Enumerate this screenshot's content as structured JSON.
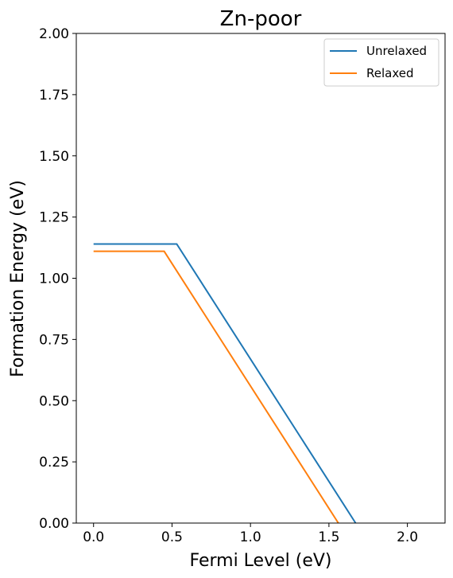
{
  "chart_data": {
    "type": "line",
    "title": "Zn-poor",
    "xlabel": "Fermi Level (eV)",
    "ylabel": "Formation Energy (eV)",
    "xlim": [
      -0.11,
      2.24
    ],
    "ylim": [
      0.0,
      2.0
    ],
    "xticks": [
      "0.0",
      "0.5",
      "1.0",
      "1.5",
      "2.0"
    ],
    "yticks": [
      "0.00",
      "0.25",
      "0.50",
      "0.75",
      "1.00",
      "1.25",
      "1.50",
      "1.75",
      "2.00"
    ],
    "grid": false,
    "legend_position": "top-right",
    "series": [
      {
        "name": "Unrelaxed",
        "color": "#1f77b4",
        "x": [
          0.0,
          0.53,
          1.67
        ],
        "y": [
          1.14,
          1.14,
          0.0
        ]
      },
      {
        "name": "Relaxed",
        "color": "#ff7f0e",
        "x": [
          0.0,
          0.45,
          1.56
        ],
        "y": [
          1.11,
          1.11,
          0.0
        ]
      }
    ]
  }
}
